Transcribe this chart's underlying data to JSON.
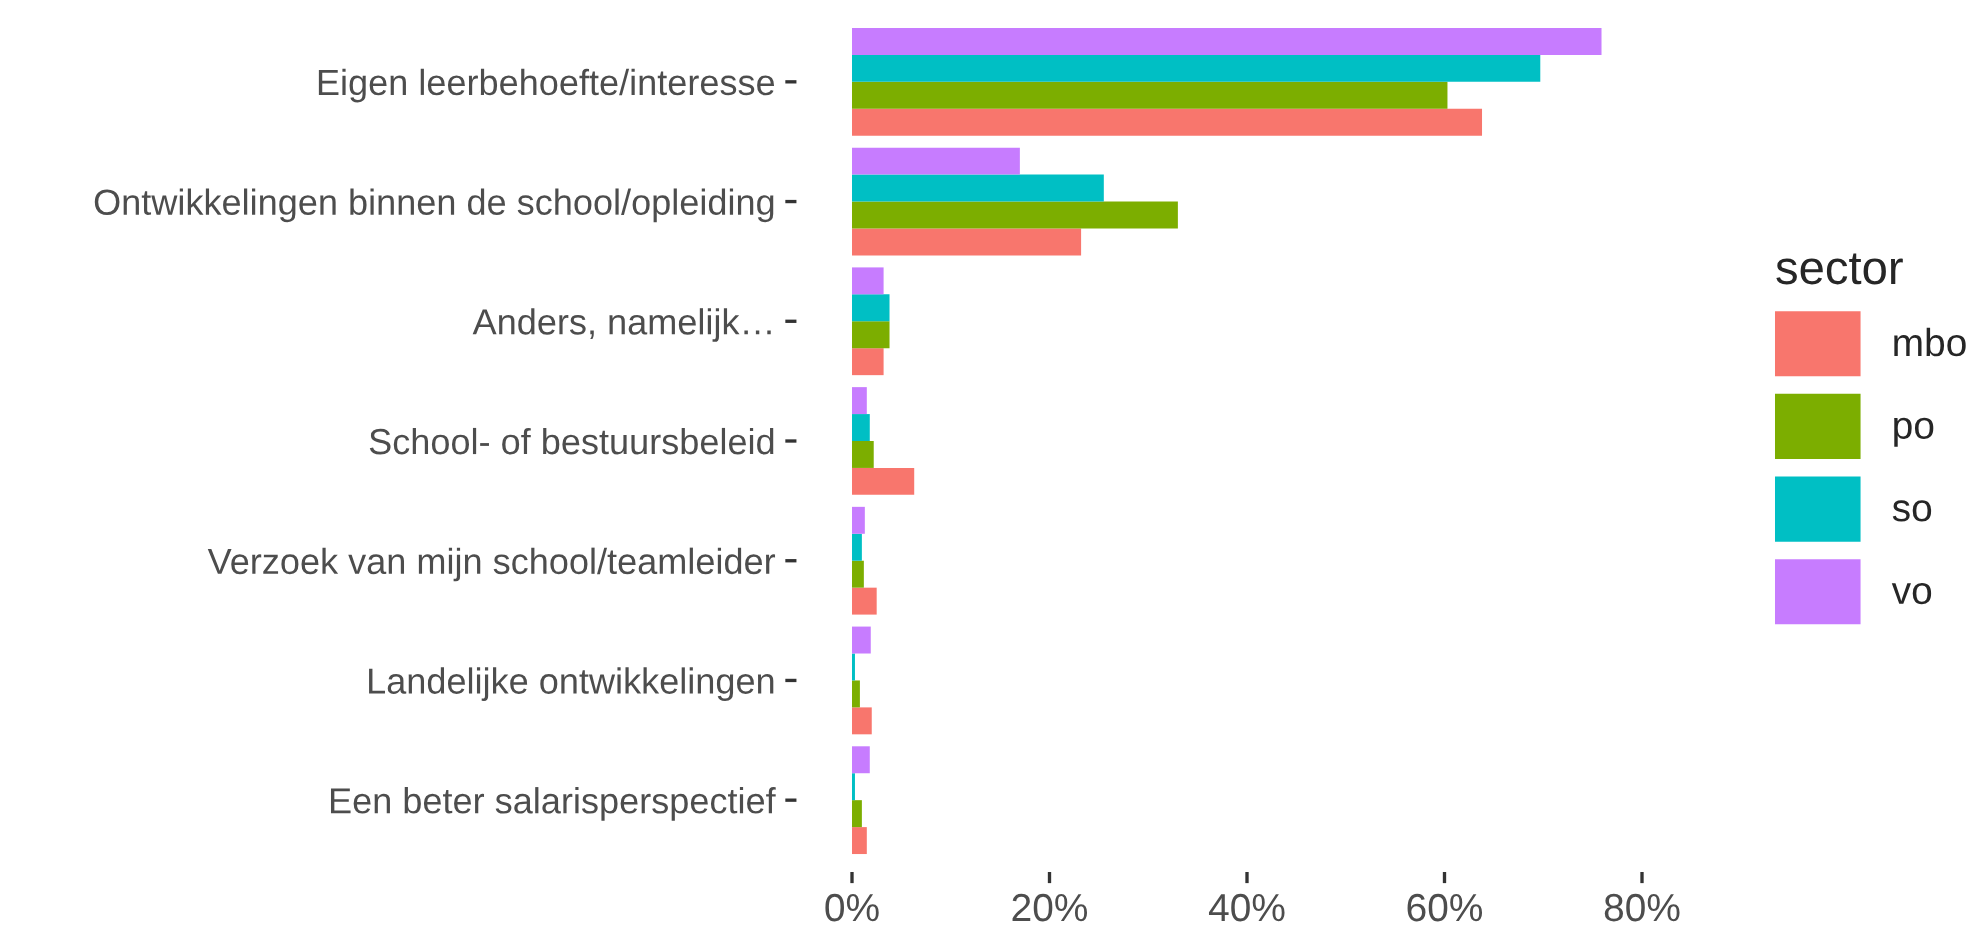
{
  "chart_data": {
    "type": "bar",
    "orientation": "horizontal",
    "categories": [
      "Eigen leerbehoefte/interesse",
      "Ontwikkelingen binnen de school/opleiding",
      "Anders, namelijk…",
      "School- of bestuursbeleid",
      "Verzoek van mijn school/teamleider",
      "Landelijke ontwikkelingen",
      "Een beter salarisperspectief"
    ],
    "series": [
      {
        "name": "mbo",
        "color": "#f8766d",
        "values": [
          63.8,
          23.2,
          3.2,
          6.3,
          2.5,
          2.0,
          1.5
        ]
      },
      {
        "name": "po",
        "color": "#7cae00",
        "values": [
          60.3,
          33.0,
          3.8,
          2.2,
          1.2,
          0.8,
          1.0
        ]
      },
      {
        "name": "so",
        "color": "#00bfc4",
        "values": [
          69.7,
          25.5,
          3.8,
          1.8,
          1.0,
          0.3,
          0.3
        ]
      },
      {
        "name": "vo",
        "color": "#c77cff",
        "values": [
          75.9,
          17.0,
          3.2,
          1.5,
          1.3,
          1.9,
          1.8
        ]
      }
    ],
    "legend_title": "sector",
    "legend": "right",
    "grid": false,
    "xlim": [
      0,
      80
    ],
    "xticks": [
      {
        "value": 0,
        "label": "0%"
      },
      {
        "value": 20,
        "label": "20%"
      },
      {
        "value": 40,
        "label": "40%"
      },
      {
        "value": 60,
        "label": "60%"
      },
      {
        "value": 80,
        "label": "80%"
      }
    ]
  }
}
